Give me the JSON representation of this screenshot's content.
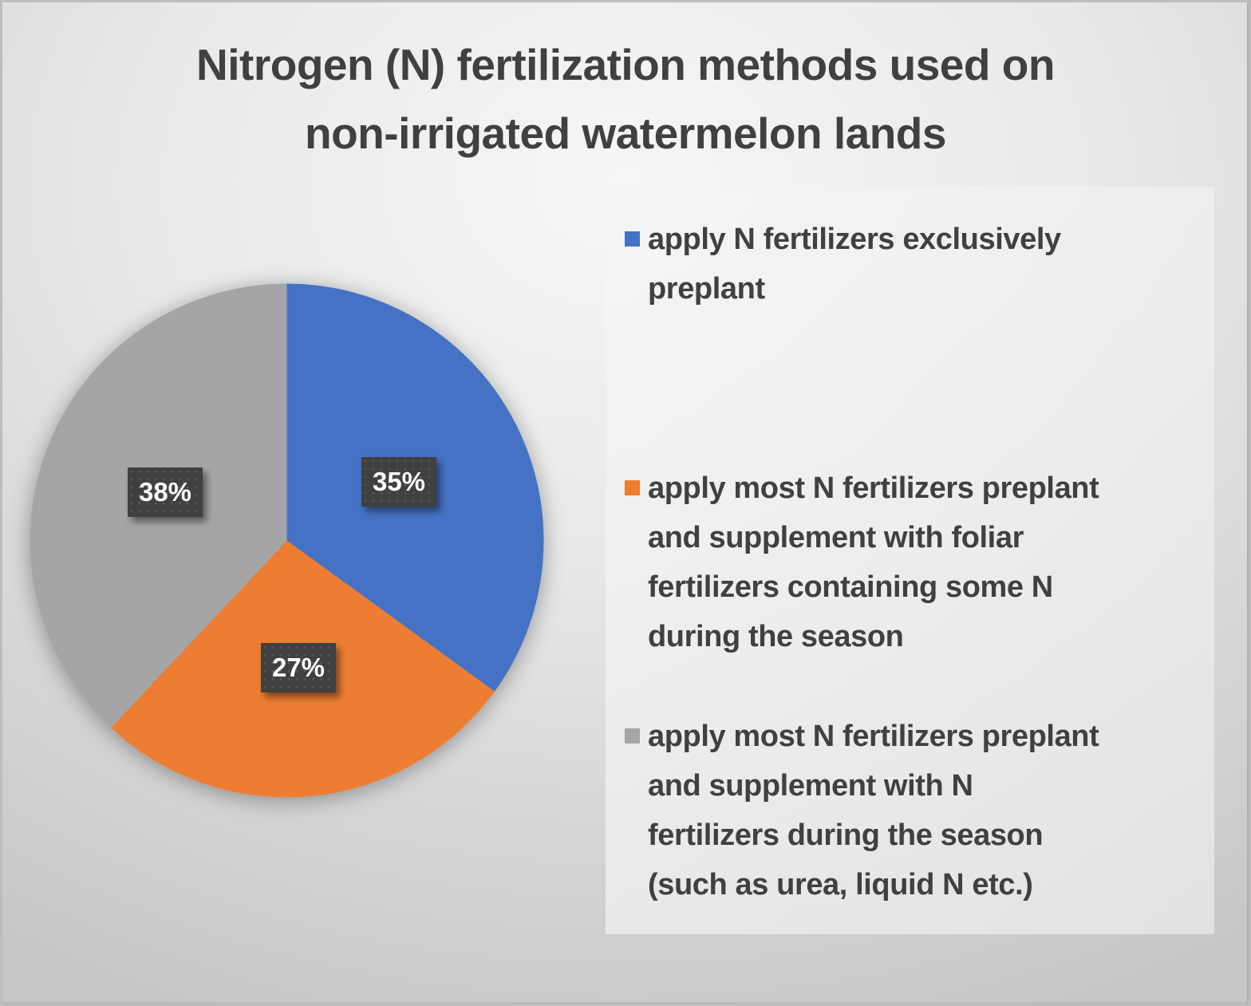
{
  "chart_data": {
    "type": "pie",
    "title": "Nitrogen (N) fertilization methods used on non-irrigated watermelon lands",
    "title_lines": [
      "Nitrogen (N) fertilization methods used on",
      "non-irrigated watermelon lands"
    ],
    "categories": [
      "apply N fertilizers exclusively preplant",
      "apply most N fertilizers preplant and supplement with foliar fertilizers containing some N during the season",
      "apply most N fertilizers preplant and supplement with N fertilizers during the season (such as urea, liquid N etc.)"
    ],
    "values": [
      35,
      27,
      38
    ],
    "value_labels": [
      "35%",
      "27%",
      "38%"
    ],
    "colors": [
      "#4472c4",
      "#ed7d31",
      "#a5a5a5"
    ],
    "start_angle_deg": 0,
    "direction": "clockwise",
    "legend_position": "right",
    "data_labels": "percent, dark boxes with shadow"
  },
  "legend": {
    "items": [
      {
        "color": "#4472c4",
        "lines": [
          "apply N fertilizers exclusively",
          "preplant"
        ]
      },
      {
        "color": "#ed7d31",
        "lines": [
          "apply most N fertilizers preplant",
          "and supplement with foliar",
          "fertilizers containing some N",
          "during the season"
        ]
      },
      {
        "color": "#a5a5a5",
        "lines": [
          "apply most N fertilizers preplant",
          "and supplement with N",
          "fertilizers during the season",
          "(such as urea, liquid N etc.)"
        ]
      }
    ]
  }
}
